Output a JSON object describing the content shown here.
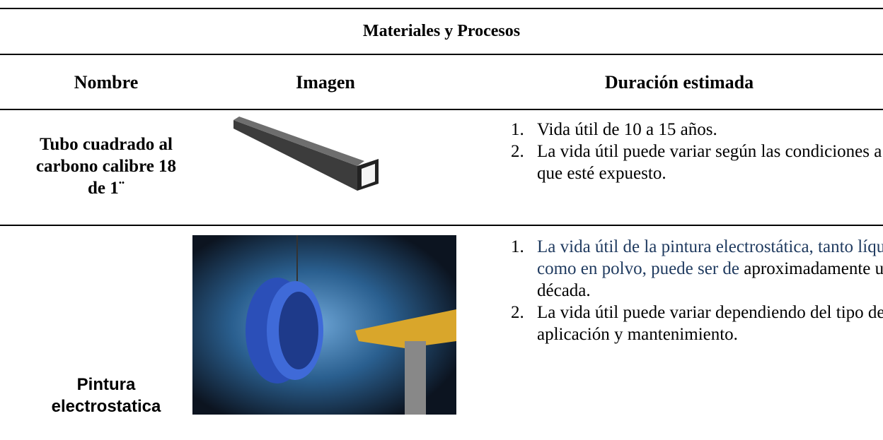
{
  "table": {
    "title": "Materiales y Procesos",
    "headers": [
      "Nombre",
      "Imagen",
      "Duración estimada"
    ],
    "rows": [
      {
        "name": "Tubo cuadrado al carbono calibre 18 de 1¨",
        "duration": [
          [
            "Vida útil de 10 a 15 años."
          ],
          [
            "La vida útil puede variar según las condiciones a las que esté expuesto."
          ]
        ]
      },
      {
        "name": "Pintura electrostatica",
        "duration": [
          [
            "La vida útil de la pintura electrostática, tanto líquida como en polvo, puede ser de",
            "aproximadamente una década."
          ],
          [
            "La vida útil puede variar dependiendo del tipo de aplicación y mantenimiento."
          ]
        ]
      }
    ]
  }
}
